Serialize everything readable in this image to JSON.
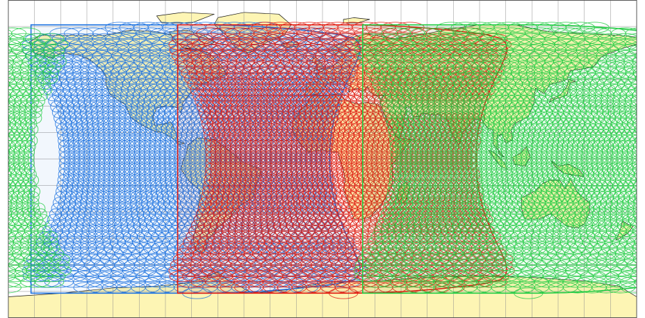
{
  "map": {
    "projection": "equirectangular",
    "land_color": "#fdf5b4",
    "ocean_color": "#ffffff",
    "coastline_color": "#111111",
    "graticule_color": "#8c8c8c",
    "graticule_step_deg": 15
  },
  "coverage": [
    {
      "name": "blue-footprint",
      "color": "#1f73e0",
      "center_lon": -72,
      "center_lat": 0,
      "radius_deg": 76
    },
    {
      "name": "red-footprint",
      "color": "#e01b10",
      "center_lon": 12,
      "center_lat": 0,
      "radius_deg": 76
    },
    {
      "name": "green-footprint",
      "color": "#22cc44",
      "center_lon": 118,
      "center_lat": 0,
      "radius_deg": 76
    }
  ]
}
